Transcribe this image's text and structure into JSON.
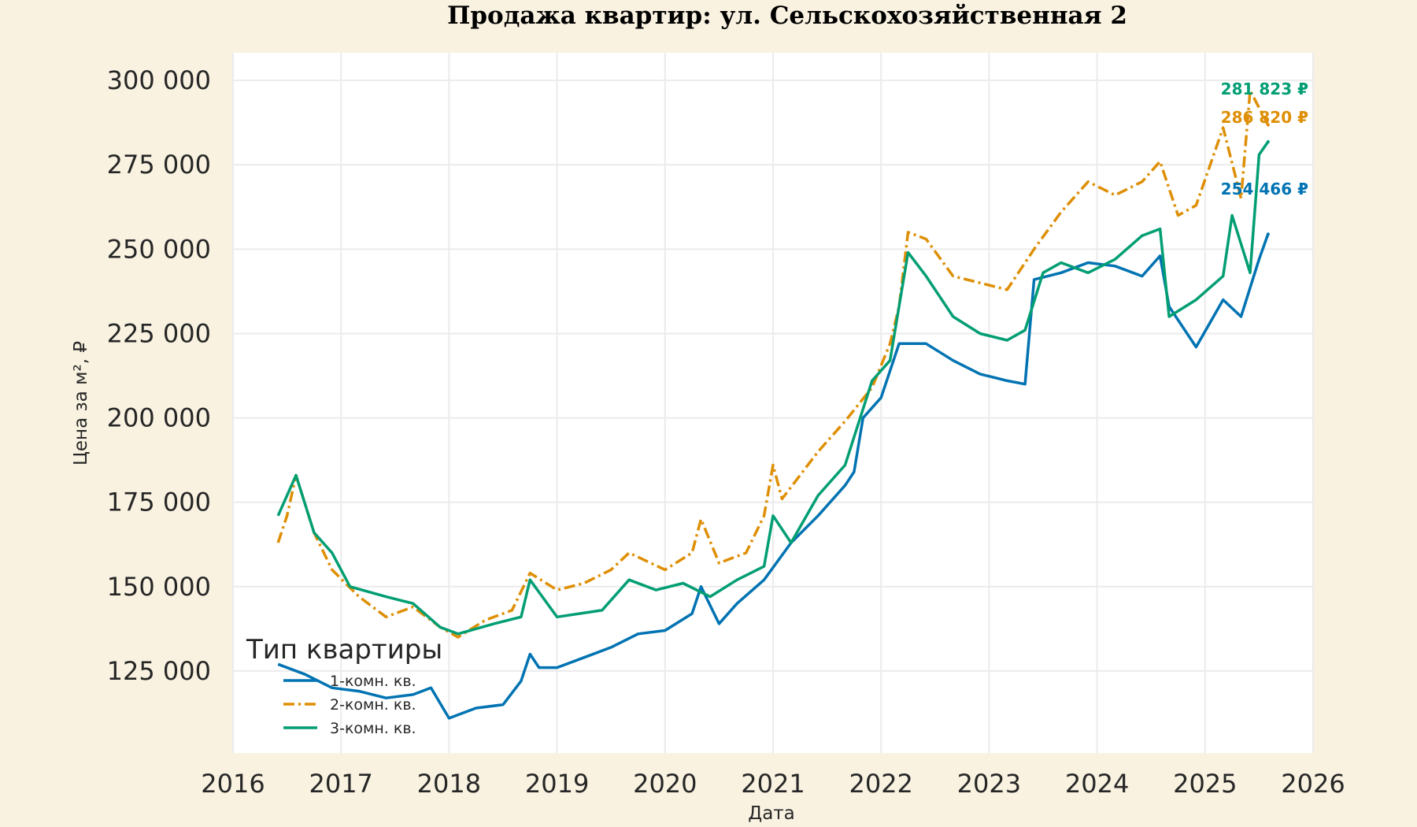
{
  "chart_data": {
    "type": "line",
    "title": "Продажа квартир: ул. Сельскохозяйственная 2",
    "xlabel": "Дата",
    "ylabel": "Цена за м², ₽",
    "xlim": [
      "2016-01",
      "2026-01"
    ],
    "ylim": [
      100700,
      308200
    ],
    "x_ticks": [
      "2016",
      "2017",
      "2018",
      "2019",
      "2020",
      "2021",
      "2022",
      "2023",
      "2024",
      "2025",
      "2026"
    ],
    "y_ticks": [
      125000,
      150000,
      175000,
      200000,
      225000,
      250000,
      275000,
      300000
    ],
    "y_tick_labels": [
      "125 000",
      "150 000",
      "175 000",
      "200 000",
      "225 000",
      "250 000",
      "275 000",
      "300 000"
    ],
    "grid": true,
    "legend": {
      "title": "Тип квартиры",
      "placement": "bottom-left"
    },
    "series": [
      {
        "name": "1-комн. кв.",
        "color": "#0173b2",
        "style": "solid",
        "end_label": "254 466 ₽",
        "points": [
          [
            "2016-06",
            127000
          ],
          [
            "2016-09",
            124000
          ],
          [
            "2016-12",
            120000
          ],
          [
            "2017-03",
            119000
          ],
          [
            "2017-06",
            117000
          ],
          [
            "2017-09",
            118000
          ],
          [
            "2017-11",
            120000
          ],
          [
            "2018-01",
            111000
          ],
          [
            "2018-04",
            114000
          ],
          [
            "2018-07",
            115000
          ],
          [
            "2018-09",
            122000
          ],
          [
            "2018-10",
            130000
          ],
          [
            "2018-11",
            126000
          ],
          [
            "2019-01",
            126000
          ],
          [
            "2019-04",
            129000
          ],
          [
            "2019-07",
            132000
          ],
          [
            "2019-10",
            136000
          ],
          [
            "2020-01",
            137000
          ],
          [
            "2020-04",
            142000
          ],
          [
            "2020-05",
            150000
          ],
          [
            "2020-07",
            139000
          ],
          [
            "2020-09",
            145000
          ],
          [
            "2020-12",
            152000
          ],
          [
            "2021-03",
            163000
          ],
          [
            "2021-06",
            171000
          ],
          [
            "2021-09",
            180000
          ],
          [
            "2021-10",
            184000
          ],
          [
            "2021-11",
            200000
          ],
          [
            "2022-01",
            206000
          ],
          [
            "2022-03",
            222000
          ],
          [
            "2022-06",
            222000
          ],
          [
            "2022-09",
            217000
          ],
          [
            "2022-12",
            213000
          ],
          [
            "2023-03",
            211000
          ],
          [
            "2023-05",
            210000
          ],
          [
            "2023-06",
            241000
          ],
          [
            "2023-09",
            243000
          ],
          [
            "2023-12",
            246000
          ],
          [
            "2024-03",
            245000
          ],
          [
            "2024-06",
            242000
          ],
          [
            "2024-08",
            248000
          ],
          [
            "2024-09",
            233000
          ],
          [
            "2024-12",
            221000
          ],
          [
            "2025-03",
            235000
          ],
          [
            "2025-05",
            230000
          ],
          [
            "2025-07",
            247000
          ],
          [
            "2025-08",
            254466
          ]
        ]
      },
      {
        "name": "2-комн. кв.",
        "color": "#de8f05",
        "style": "dashdot",
        "end_label": "286 820 ₽",
        "points": [
          [
            "2016-06",
            163000
          ],
          [
            "2016-07",
            171000
          ],
          [
            "2016-08",
            183000
          ],
          [
            "2016-10",
            166000
          ],
          [
            "2016-12",
            155000
          ],
          [
            "2017-03",
            147000
          ],
          [
            "2017-06",
            141000
          ],
          [
            "2017-09",
            144000
          ],
          [
            "2017-12",
            138000
          ],
          [
            "2018-02",
            135000
          ],
          [
            "2018-05",
            140000
          ],
          [
            "2018-08",
            143000
          ],
          [
            "2018-10",
            154000
          ],
          [
            "2019-01",
            149000
          ],
          [
            "2019-04",
            151000
          ],
          [
            "2019-07",
            155000
          ],
          [
            "2019-09",
            160000
          ],
          [
            "2020-01",
            155000
          ],
          [
            "2020-04",
            160000
          ],
          [
            "2020-05",
            170000
          ],
          [
            "2020-07",
            157000
          ],
          [
            "2020-10",
            160000
          ],
          [
            "2020-12",
            171000
          ],
          [
            "2021-01",
            186000
          ],
          [
            "2021-02",
            176000
          ],
          [
            "2021-06",
            190000
          ],
          [
            "2021-09",
            199000
          ],
          [
            "2021-12",
            209000
          ],
          [
            "2022-02",
            222000
          ],
          [
            "2022-03",
            233000
          ],
          [
            "2022-04",
            255000
          ],
          [
            "2022-06",
            253000
          ],
          [
            "2022-09",
            242000
          ],
          [
            "2022-12",
            240000
          ],
          [
            "2023-03",
            238000
          ],
          [
            "2023-06",
            250000
          ],
          [
            "2023-09",
            261000
          ],
          [
            "2023-12",
            270000
          ],
          [
            "2024-03",
            266000
          ],
          [
            "2024-06",
            270000
          ],
          [
            "2024-08",
            276000
          ],
          [
            "2024-10",
            260000
          ],
          [
            "2024-12",
            263000
          ],
          [
            "2025-03",
            286000
          ],
          [
            "2025-05",
            265000
          ],
          [
            "2025-06",
            297000
          ],
          [
            "2025-08",
            286820
          ]
        ]
      },
      {
        "name": "3-комн. кв.",
        "color": "#029e73",
        "style": "solid",
        "end_label": "281 823 ₽",
        "points": [
          [
            "2016-06",
            171000
          ],
          [
            "2016-08",
            183000
          ],
          [
            "2016-10",
            166000
          ],
          [
            "2016-12",
            160000
          ],
          [
            "2017-02",
            150000
          ],
          [
            "2017-06",
            147000
          ],
          [
            "2017-09",
            145000
          ],
          [
            "2017-12",
            138000
          ],
          [
            "2018-02",
            136000
          ],
          [
            "2018-06",
            139000
          ],
          [
            "2018-09",
            141000
          ],
          [
            "2018-10",
            152000
          ],
          [
            "2019-01",
            141000
          ],
          [
            "2019-06",
            143000
          ],
          [
            "2019-09",
            152000
          ],
          [
            "2019-12",
            149000
          ],
          [
            "2020-03",
            151000
          ],
          [
            "2020-06",
            147000
          ],
          [
            "2020-09",
            152000
          ],
          [
            "2020-12",
            156000
          ],
          [
            "2021-01",
            171000
          ],
          [
            "2021-03",
            163000
          ],
          [
            "2021-06",
            177000
          ],
          [
            "2021-09",
            186000
          ],
          [
            "2021-12",
            211000
          ],
          [
            "2022-02",
            217000
          ],
          [
            "2022-04",
            249000
          ],
          [
            "2022-06",
            242000
          ],
          [
            "2022-09",
            230000
          ],
          [
            "2022-12",
            225000
          ],
          [
            "2023-03",
            223000
          ],
          [
            "2023-05",
            226000
          ],
          [
            "2023-07",
            243000
          ],
          [
            "2023-09",
            246000
          ],
          [
            "2023-12",
            243000
          ],
          [
            "2024-03",
            247000
          ],
          [
            "2024-06",
            254000
          ],
          [
            "2024-08",
            256000
          ],
          [
            "2024-09",
            230000
          ],
          [
            "2024-12",
            235000
          ],
          [
            "2025-03",
            242000
          ],
          [
            "2025-04",
            260000
          ],
          [
            "2025-06",
            243000
          ],
          [
            "2025-07",
            278000
          ],
          [
            "2025-08",
            281823
          ]
        ]
      }
    ]
  }
}
